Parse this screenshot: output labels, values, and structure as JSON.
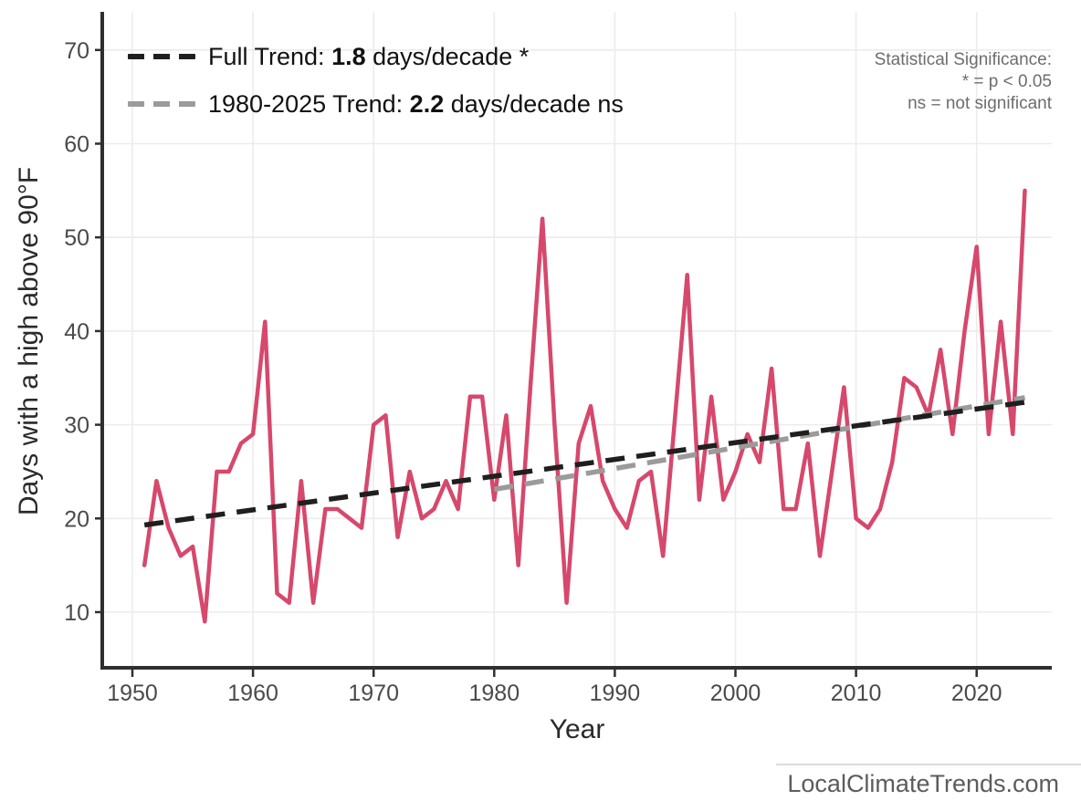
{
  "page": {
    "watermark": "LocalClimateTrends.com"
  },
  "y_axis": {
    "title": "Days with a high above 90°F",
    "ticks": [
      10,
      20,
      30,
      40,
      50,
      60,
      70
    ]
  },
  "x_axis": {
    "title": "Year",
    "ticks": [
      1950,
      1960,
      1970,
      1980,
      1990,
      2000,
      2010,
      2020
    ]
  },
  "legend": {
    "items": [
      {
        "id": "full",
        "prefix": "Full Trend: ",
        "value": "1.8",
        "suffix": " days/decade *",
        "color": "#1f1f1f"
      },
      {
        "id": "recent",
        "prefix": "1980-2025 Trend: ",
        "value": "2.2",
        "suffix": " days/decade ns",
        "color": "#9b9b9b"
      }
    ]
  },
  "annotation": {
    "title": "Statistical Significance:",
    "line_significant": "* = p < 0.05",
    "line_ns": "ns = not significant"
  },
  "chart_data": {
    "type": "line",
    "title": "",
    "xlabel": "Year",
    "ylabel": "Days with a high above 90°F",
    "xlim": [
      1947.5,
      2026.5
    ],
    "ylim": [
      5,
      73
    ],
    "grid": true,
    "x": [
      1951,
      1952,
      1953,
      1954,
      1955,
      1956,
      1957,
      1958,
      1959,
      1960,
      1961,
      1962,
      1963,
      1964,
      1965,
      1966,
      1967,
      1968,
      1969,
      1970,
      1971,
      1972,
      1973,
      1974,
      1975,
      1976,
      1977,
      1978,
      1979,
      1980,
      1981,
      1982,
      1983,
      1984,
      1985,
      1986,
      1987,
      1988,
      1989,
      1990,
      1991,
      1992,
      1993,
      1994,
      1995,
      1996,
      1997,
      1998,
      1999,
      2000,
      2001,
      2002,
      2003,
      2004,
      2005,
      2006,
      2007,
      2008,
      2009,
      2010,
      2011,
      2012,
      2013,
      2014,
      2015,
      2016,
      2017,
      2018,
      2019,
      2020,
      2021,
      2022,
      2023,
      2024
    ],
    "series": [
      {
        "name": "days-above-90F-per-year",
        "color": "#d6486c",
        "values": [
          15,
          24,
          19,
          16,
          17,
          9,
          25,
          25,
          28,
          29,
          41,
          12,
          11,
          24,
          11,
          21,
          21,
          20,
          19,
          30,
          31,
          18,
          25,
          20,
          21,
          24,
          21,
          33,
          33,
          22,
          31,
          15,
          34,
          52,
          30,
          11,
          28,
          32,
          24,
          21,
          19,
          24,
          25,
          16,
          31,
          46,
          22,
          33,
          22,
          25,
          29,
          26,
          36,
          21,
          21,
          28,
          16,
          25,
          34,
          20,
          19,
          21,
          26,
          35,
          34,
          31,
          38,
          29,
          40,
          49,
          29,
          41,
          29,
          55
        ]
      }
    ],
    "trend_lines": [
      {
        "name": "recent-trend",
        "label": "1980-2025 Trend",
        "slope_per_decade": 2.2,
        "significance": "ns",
        "color": "#9b9b9b",
        "style": "dashed",
        "x_start": 1980,
        "y_start": 23.1,
        "x_end": 2024,
        "y_end": 32.9
      },
      {
        "name": "full-trend",
        "label": "Full Trend",
        "slope_per_decade": 1.8,
        "significance": "*",
        "color": "#1f1f1f",
        "style": "dashed",
        "x_start": 1951,
        "y_start": 19.3,
        "x_end": 2024,
        "y_end": 32.4
      }
    ],
    "legend_position": "top-left"
  }
}
